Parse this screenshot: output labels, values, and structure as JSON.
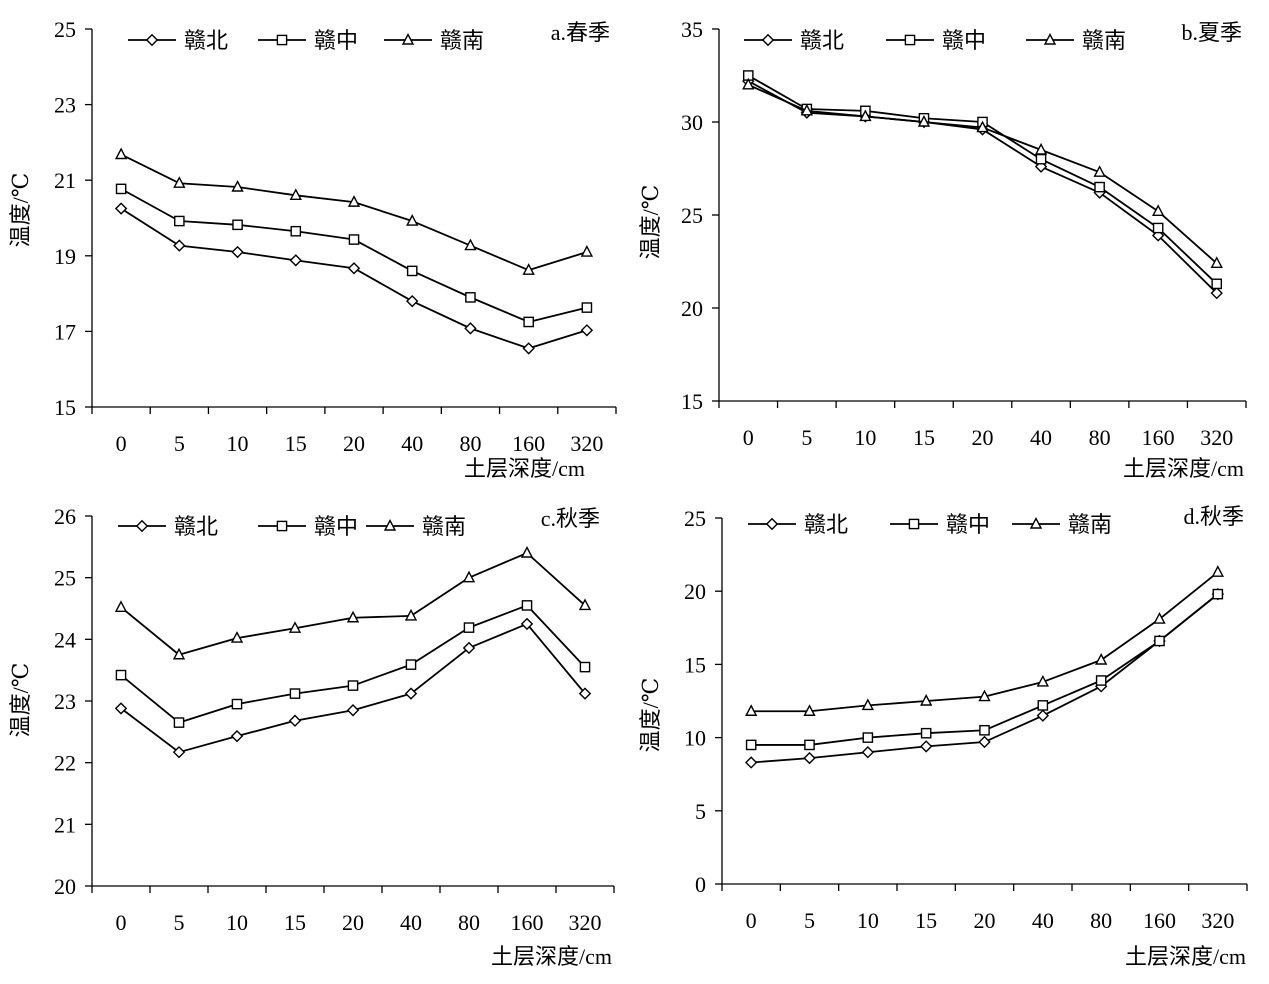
{
  "chart_data": [
    {
      "type": "line",
      "title": "a.春季",
      "xlabel": "土层深度/cm",
      "ylabel": "温度/℃",
      "categories": [
        "0",
        "5",
        "10",
        "15",
        "20",
        "40",
        "80",
        "160",
        "320"
      ],
      "ylim": [
        15,
        25
      ],
      "yticks": [
        15,
        17,
        19,
        21,
        23,
        25
      ],
      "grid": false,
      "legend_position": "top-left",
      "series": [
        {
          "name": "赣北",
          "marker": "diamond",
          "values": [
            20.25,
            19.27,
            19.1,
            18.88,
            18.67,
            17.8,
            17.08,
            16.55,
            17.03
          ]
        },
        {
          "name": "赣中",
          "marker": "square",
          "values": [
            20.77,
            19.92,
            19.82,
            19.65,
            19.43,
            18.6,
            17.9,
            17.25,
            17.63
          ]
        },
        {
          "name": "赣南",
          "marker": "triangle",
          "values": [
            21.68,
            20.92,
            20.82,
            20.6,
            20.42,
            19.92,
            19.27,
            18.62,
            19.1
          ]
        }
      ]
    },
    {
      "type": "line",
      "title": "b.夏季",
      "xlabel": "土层深度/cm",
      "ylabel": "温度/℃",
      "categories": [
        "0",
        "5",
        "10",
        "15",
        "20",
        "40",
        "80",
        "160",
        "320"
      ],
      "ylim": [
        15,
        35
      ],
      "yticks": [
        15,
        20,
        25,
        30,
        35
      ],
      "grid": false,
      "legend_position": "top-left",
      "series": [
        {
          "name": "赣北",
          "marker": "diamond",
          "values": [
            32.2,
            30.5,
            30.3,
            30.0,
            29.6,
            27.6,
            26.2,
            23.9,
            20.8
          ]
        },
        {
          "name": "赣中",
          "marker": "square",
          "values": [
            32.5,
            30.7,
            30.6,
            30.2,
            30.0,
            28.0,
            26.5,
            24.3,
            21.3
          ]
        },
        {
          "name": "赣南",
          "marker": "triangle",
          "values": [
            32.0,
            30.6,
            30.3,
            30.0,
            29.7,
            28.5,
            27.3,
            25.2,
            22.4
          ]
        }
      ]
    },
    {
      "type": "line",
      "title": "c.秋季",
      "xlabel": "土层深度/cm",
      "ylabel": "温度/℃",
      "categories": [
        "0",
        "5",
        "10",
        "15",
        "20",
        "40",
        "80",
        "160",
        "320"
      ],
      "ylim": [
        20,
        26
      ],
      "yticks": [
        20,
        21,
        22,
        23,
        24,
        25,
        26
      ],
      "grid": false,
      "legend_position": "top-left",
      "series": [
        {
          "name": "赣北",
          "marker": "diamond",
          "values": [
            22.88,
            22.17,
            22.43,
            22.68,
            22.85,
            23.12,
            23.86,
            24.25,
            23.12
          ]
        },
        {
          "name": "赣中",
          "marker": "square",
          "values": [
            23.42,
            22.65,
            22.95,
            23.12,
            23.25,
            23.59,
            24.19,
            24.55,
            23.55
          ]
        },
        {
          "name": "赣南",
          "marker": "triangle",
          "values": [
            24.52,
            23.75,
            24.02,
            24.18,
            24.35,
            24.38,
            25.0,
            25.4,
            24.55
          ]
        }
      ]
    },
    {
      "type": "line",
      "title": "d.秋季",
      "xlabel": "土层深度/cm",
      "ylabel": "温度/℃",
      "categories": [
        "0",
        "5",
        "10",
        "15",
        "20",
        "40",
        "80",
        "160",
        "320"
      ],
      "ylim": [
        0,
        25
      ],
      "yticks": [
        0,
        5,
        10,
        15,
        20,
        25
      ],
      "grid": false,
      "legend_position": "top-left",
      "series": [
        {
          "name": "赣北",
          "marker": "diamond",
          "values": [
            8.3,
            8.6,
            9.0,
            9.4,
            9.7,
            11.5,
            13.5,
            16.6,
            19.8
          ]
        },
        {
          "name": "赣中",
          "marker": "square",
          "values": [
            9.5,
            9.5,
            10.0,
            10.3,
            10.5,
            12.2,
            13.9,
            16.6,
            19.8
          ]
        },
        {
          "name": "赣南",
          "marker": "triangle",
          "values": [
            11.8,
            11.8,
            12.2,
            12.5,
            12.8,
            13.8,
            15.3,
            18.1,
            21.3
          ]
        }
      ]
    }
  ]
}
